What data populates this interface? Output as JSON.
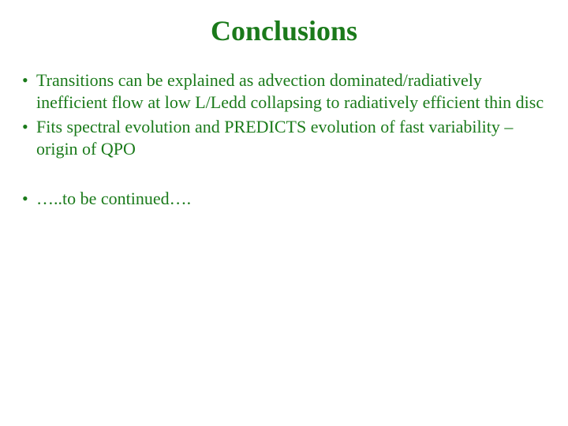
{
  "title": "Conclusions",
  "title_color": "#1a7a1a",
  "body_color": "#1a7a1a",
  "bullets_group1": [
    "Transitions can be explained as advection dominated/radiatively inefficient flow at low L/Ledd collapsing to radiatively efficient thin disc",
    "Fits spectral evolution and PREDICTS evolution of fast variability – origin of QPO"
  ],
  "bullets_group2": [
    "…..to be continued…."
  ],
  "background_color": "#ffffff",
  "title_fontsize": 36,
  "body_fontsize": 22,
  "font_family": "Times New Roman"
}
